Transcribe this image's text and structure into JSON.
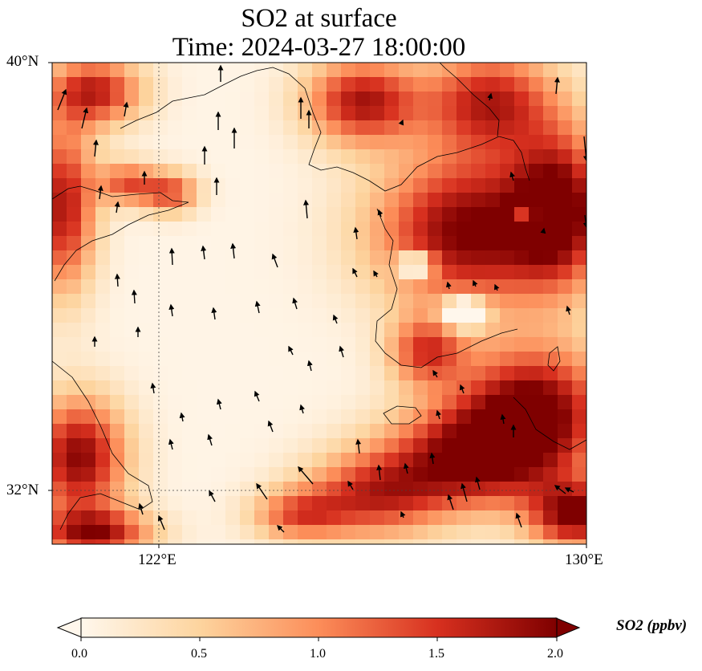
{
  "title": {
    "line1": "SO2 at surface",
    "line2": "Time: 2024-03-27 18:00:00"
  },
  "axes": {
    "y_ticks": [
      "40°N",
      "32°N"
    ],
    "x_ticks": [
      "122°E",
      "130°E"
    ],
    "gridlines": "dotted"
  },
  "colorbar": {
    "label": "SO2 (ppbv)",
    "ticks": [
      "0.0",
      "0.5",
      "1.0",
      "1.5",
      "2.0"
    ],
    "min": 0.0,
    "max": 2.0,
    "extend": "both",
    "colormap": "OrRd",
    "colors": [
      "#fff7ec",
      "#fdd49e",
      "#fc8d59",
      "#d7301f",
      "#7f0000"
    ]
  },
  "map": {
    "lon_range": [
      120,
      130
    ],
    "lat_range": [
      31,
      40
    ],
    "field": "SO2 surface concentration",
    "overlay": "wind vectors",
    "coastlines": true
  }
}
